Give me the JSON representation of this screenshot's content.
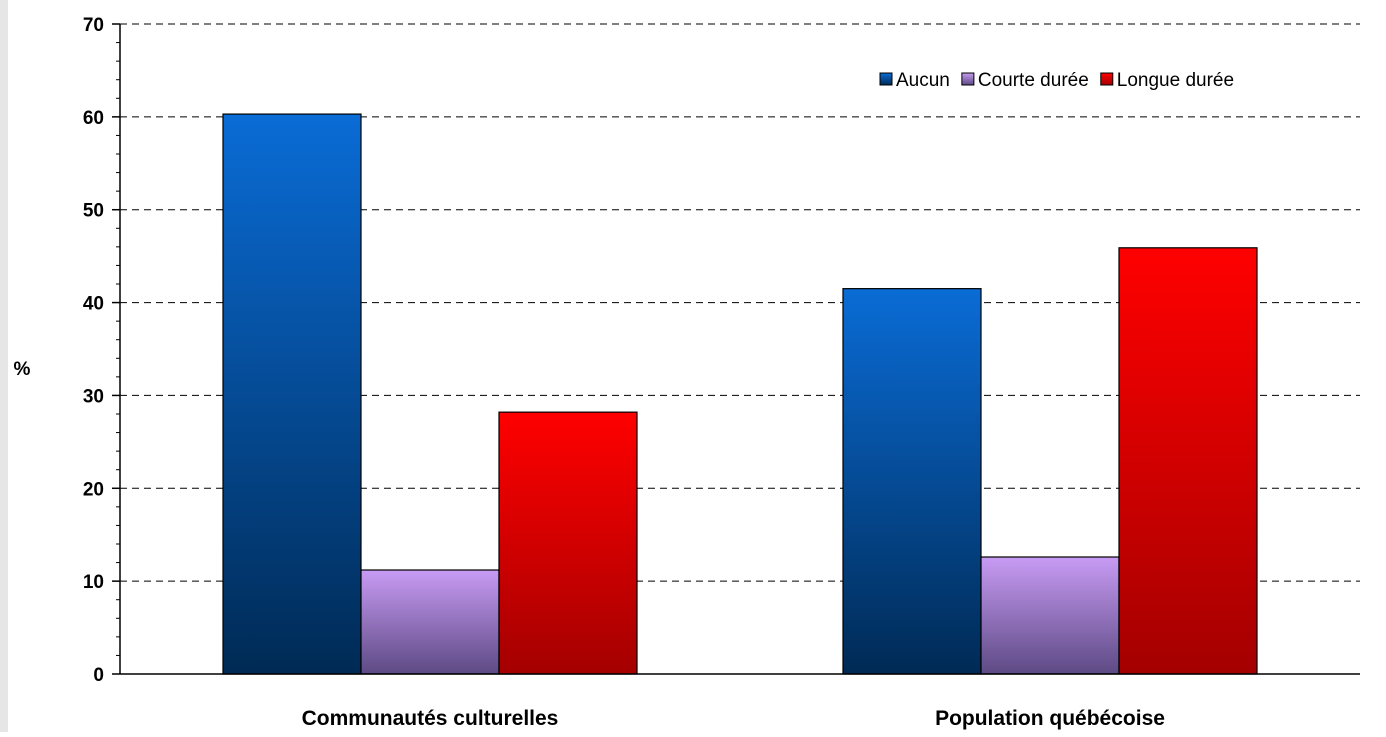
{
  "chart_data": {
    "type": "bar",
    "title": "",
    "xlabel": "",
    "ylabel": "%",
    "ylim": [
      0,
      70
    ],
    "yticks": [
      0,
      10,
      20,
      30,
      40,
      50,
      60,
      70
    ],
    "categories": [
      "Communautés culturelles",
      "Population québécoise"
    ],
    "series": [
      {
        "name": "Aucun",
        "values": [
          60.3,
          41.5
        ],
        "color": "#0f5fb8"
      },
      {
        "name": "Courte durée",
        "values": [
          11.2,
          12.6
        ],
        "color": "#b98ae6"
      },
      {
        "name": "Longue durée",
        "values": [
          28.2,
          45.9
        ],
        "color": "#e80000"
      }
    ],
    "grid": true,
    "legend_position": "top-right"
  }
}
